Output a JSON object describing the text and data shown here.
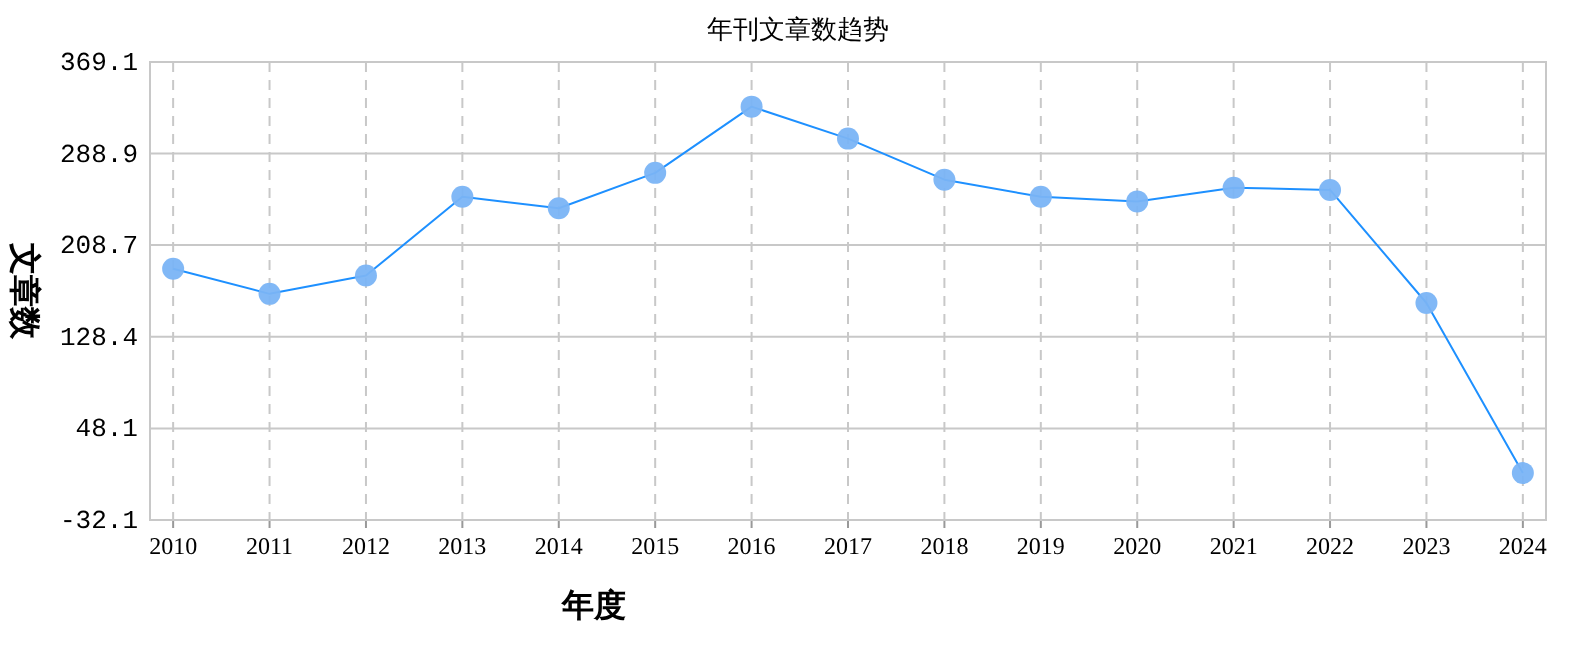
{
  "chart_data": {
    "type": "line",
    "title": "年刊文章数趋势",
    "xlabel": "年度",
    "ylabel": "文章数",
    "categories": [
      "2010",
      "2011",
      "2012",
      "2013",
      "2014",
      "2015",
      "2016",
      "2017",
      "2018",
      "2019",
      "2020",
      "2021",
      "2022",
      "2023",
      "2024"
    ],
    "series": [
      {
        "color": "#1e90ff",
        "values": [
          188,
          166,
          182,
          251,
          241,
          272,
          330,
          302,
          266,
          251,
          247,
          259,
          257,
          158,
          9
        ]
      }
    ],
    "ylim": [
      -32.1,
      369.1
    ],
    "yticks": [
      -32.1,
      48.1,
      128.4,
      208.7,
      288.9,
      369.1
    ],
    "grid": true,
    "marker": "circle",
    "line_style": "solid"
  }
}
